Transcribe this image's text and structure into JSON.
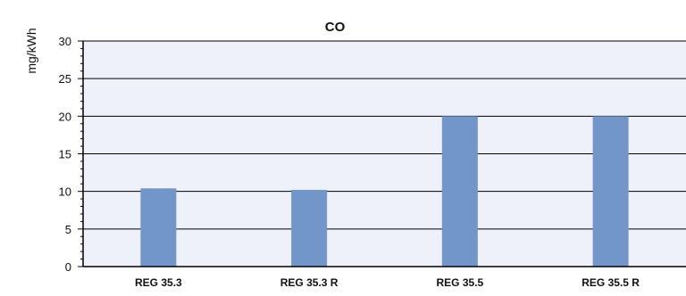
{
  "chart_data": {
    "type": "bar",
    "title": "CO",
    "xlabel": "",
    "ylabel": "mg/kWh",
    "categories": [
      "REG 35.3",
      "REG 35.3 R",
      "REG 35.5",
      "REG 35.5 R"
    ],
    "values": [
      10.4,
      10.2,
      20.0,
      20.0
    ],
    "ylim": [
      0,
      30
    ],
    "yticks": [
      0,
      5,
      10,
      15,
      20,
      25,
      30
    ],
    "grid": true,
    "legend": "none"
  },
  "colors": {
    "bar": "#7396c8",
    "plot_background": "#eef1f9",
    "grid": "#000000",
    "axis": "#000000"
  }
}
